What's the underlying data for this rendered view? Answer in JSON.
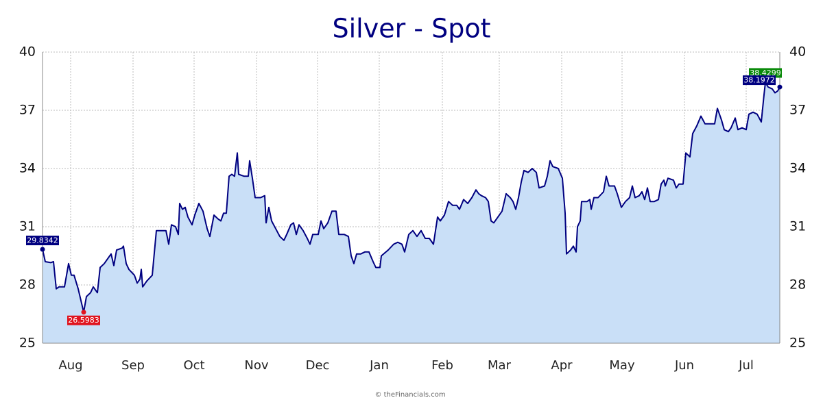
{
  "chart_data": {
    "type": "area",
    "title": "Silver - Spot",
    "footer": "© theFinancials.com",
    "color": "#000080",
    "fill": "#c9dff7",
    "grid": true,
    "x": [
      0,
      4,
      12,
      16,
      20,
      24,
      32,
      38,
      42,
      46,
      52,
      60,
      64,
      70,
      74,
      80,
      84,
      90,
      96,
      100,
      104,
      108,
      116,
      118,
      122,
      126,
      134,
      138,
      142,
      144,
      146,
      152,
      160,
      166,
      174,
      180,
      184,
      188,
      194,
      198,
      200,
      204,
      208,
      212,
      218,
      222,
      228,
      234,
      240,
      244,
      250,
      256,
      260,
      264,
      268,
      272,
      276,
      280,
      284,
      286,
      294,
      300,
      302,
      306,
      310,
      318,
      324,
      326,
      330,
      334,
      340,
      346,
      352,
      356,
      362,
      366,
      370,
      374,
      380,
      386,
      390,
      394,
      402,
      406,
      410,
      416,
      422,
      428,
      432,
      440,
      446,
      450,
      454,
      458,
      464,
      470,
      476,
      482,
      486,
      492,
      494,
      504,
      512,
      518,
      524,
      528,
      534,
      540,
      546,
      552,
      558,
      564,
      570,
      576,
      580,
      586,
      592,
      598,
      604,
      608,
      614,
      620,
      626,
      632,
      636,
      640,
      646,
      650,
      654,
      658,
      664,
      670,
      676,
      682,
      686,
      690,
      694,
      698,
      702,
      708,
      714,
      720,
      724,
      732,
      736,
      740,
      744,
      752,
      758,
      762,
      764,
      770,
      774,
      778,
      780,
      784,
      786,
      794,
      798,
      800,
      804,
      810,
      818,
      822,
      826,
      834,
      838,
      844,
      850,
      856,
      860,
      864,
      870,
      874,
      878,
      882,
      886,
      892,
      898,
      902,
      906,
      908,
      912,
      920,
      924,
      928,
      934,
      938,
      944,
      948,
      954,
      960,
      966,
      972,
      980,
      984,
      990,
      994,
      1000,
      1004,
      1010,
      1014,
      1020,
      1026,
      1030,
      1036,
      1042,
      1048,
      1052,
      1054,
      1058,
      1064,
      1068,
      1072,
      1075
    ],
    "values": [
      29.8342,
      29.2,
      29.15,
      29.2,
      27.8,
      27.9,
      27.9,
      29.1,
      28.5,
      28.5,
      27.8,
      26.5983,
      27.4,
      27.6,
      27.9,
      27.6,
      28.9,
      29.1,
      29.4,
      29.6,
      29.0,
      29.8,
      29.9,
      30.0,
      29.1,
      28.8,
      28.5,
      28.1,
      28.3,
      28.8,
      27.9,
      28.2,
      28.5,
      30.8,
      30.8,
      30.8,
      30.1,
      31.1,
      31.0,
      30.6,
      32.2,
      31.9,
      32.0,
      31.5,
      31.1,
      31.6,
      32.2,
      31.8,
      30.9,
      30.5,
      31.6,
      31.4,
      31.3,
      31.7,
      31.7,
      33.6,
      33.7,
      33.6,
      34.8,
      33.7,
      33.6,
      33.6,
      34.4,
      33.5,
      32.5,
      32.5,
      32.6,
      31.2,
      32.0,
      31.3,
      30.9,
      30.5,
      30.3,
      30.6,
      31.1,
      31.2,
      30.6,
      31.1,
      30.8,
      30.4,
      30.1,
      30.6,
      30.6,
      31.3,
      30.9,
      31.2,
      31.8,
      31.8,
      30.6,
      30.6,
      30.5,
      29.5,
      29.1,
      29.6,
      29.6,
      29.7,
      29.7,
      29.2,
      28.9,
      28.9,
      29.5,
      29.8,
      30.1,
      30.2,
      30.1,
      29.7,
      30.6,
      30.8,
      30.5,
      30.8,
      30.4,
      30.4,
      30.1,
      31.5,
      31.3,
      31.6,
      32.3,
      32.1,
      32.1,
      31.9,
      32.4,
      32.2,
      32.5,
      32.9,
      32.7,
      32.6,
      32.5,
      32.3,
      31.3,
      31.2,
      31.5,
      31.8,
      32.7,
      32.5,
      32.3,
      31.9,
      32.5,
      33.3,
      33.9,
      33.8,
      34.0,
      33.8,
      33.0,
      33.1,
      33.6,
      34.4,
      34.1,
      34.0,
      33.5,
      31.7,
      29.6,
      29.8,
      30.0,
      29.7,
      31.0,
      31.3,
      32.3,
      32.3,
      32.4,
      31.9,
      32.5,
      32.5,
      32.8,
      33.6,
      33.1,
      33.1,
      32.7,
      32.0,
      32.3,
      32.5,
      33.1,
      32.5,
      32.6,
      32.8,
      32.4,
      33.0,
      32.3,
      32.3,
      32.4,
      33.2,
      33.4,
      33.1,
      33.5,
      33.4,
      33.0,
      33.2,
      33.2,
      34.8,
      34.6,
      35.8,
      36.2,
      36.7,
      36.3,
      36.3,
      36.3,
      37.1,
      36.5,
      36.0,
      35.9,
      36.1,
      36.6,
      36.0,
      36.1,
      36.0,
      36.8,
      36.9,
      36.8,
      36.4,
      37.8,
      38.4299,
      38.2,
      38.1,
      37.9,
      38.0,
      38.1972
    ],
    "markers": [
      {
        "x": 0,
        "value": 29.8342,
        "color": "#000080"
      },
      {
        "x": 60,
        "value": 26.5983,
        "color": "#e0141e"
      },
      {
        "x": 1054,
        "value": 38.4299,
        "color": "#0a8a0a"
      },
      {
        "x": 1075,
        "value": 38.1972,
        "color": "#000080"
      }
    ],
    "xlim": [
      0,
      1075
    ],
    "xticks": [
      {
        "value": 41,
        "label": "Aug"
      },
      {
        "value": 132,
        "label": "Sep"
      },
      {
        "value": 221,
        "label": "Oct"
      },
      {
        "value": 312,
        "label": "Nov"
      },
      {
        "value": 401,
        "label": "Dec"
      },
      {
        "value": 491,
        "label": "Jan"
      },
      {
        "value": 583,
        "label": "Feb"
      },
      {
        "value": 666,
        "label": "Mar"
      },
      {
        "value": 757,
        "label": "Apr"
      },
      {
        "value": 845,
        "label": "May"
      },
      {
        "value": 936,
        "label": "Jun"
      },
      {
        "value": 1026,
        "label": "Jul"
      }
    ],
    "ylim": [
      25,
      40
    ],
    "yticks": [
      25,
      28,
      31,
      34,
      37,
      40
    ]
  }
}
